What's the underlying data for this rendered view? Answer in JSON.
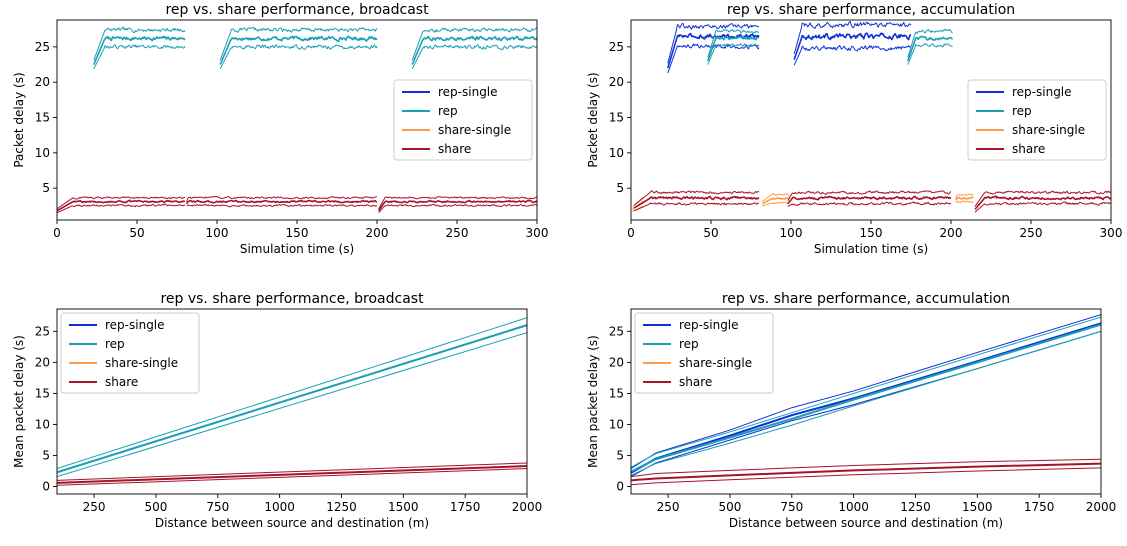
{
  "colors": {
    "rep_single": "#1030d8",
    "rep": "#1a9fb5",
    "share_single": "#ff9a4a",
    "share": "#a51428"
  },
  "chart_data": [
    {
      "id": "tl",
      "type": "line",
      "title": "rep vs. share performance, broadcast",
      "xlabel": "Simulation time (s)",
      "ylabel": "Packet delay (s)",
      "xlim": [
        0,
        300
      ],
      "ylim": [
        0.5,
        28.8
      ],
      "xticks": [
        0,
        50,
        100,
        150,
        200,
        250,
        300
      ],
      "yticks": [
        5,
        10,
        15,
        20,
        25
      ],
      "legend_loc": "center-right",
      "legend": [
        "rep-single",
        "rep",
        "share-single",
        "share"
      ],
      "series": [
        {
          "name": "rep",
          "style": "rep",
          "band": true,
          "segments": [
            {
              "x0": 23,
              "x1": 80,
              "start": 22.5,
              "mean": 26.2,
              "spread": 1.2,
              "rise": 7
            },
            {
              "x0": 102,
              "x1": 200,
              "start": 22.5,
              "mean": 26.2,
              "spread": 1.2,
              "rise": 7
            },
            {
              "x0": 222,
              "x1": 300,
              "start": 22.5,
              "mean": 26.2,
              "spread": 1.2,
              "rise": 7
            }
          ]
        },
        {
          "name": "share",
          "style": "share",
          "band": true,
          "segments": [
            {
              "x0": 0,
              "x1": 80,
              "start": 1.8,
              "mean": 3.1,
              "spread": 0.55,
              "rise": 10
            },
            {
              "x0": 81,
              "x1": 200,
              "start": 2.8,
              "mean": 3.1,
              "spread": 0.55,
              "rise": 1
            },
            {
              "x0": 201,
              "x1": 300,
              "start": 1.8,
              "mean": 3.1,
              "spread": 0.55,
              "rise": 4
            }
          ]
        }
      ]
    },
    {
      "id": "tr",
      "type": "line",
      "title": "rep vs. share performance, accumulation",
      "xlabel": "Simulation time (s)",
      "ylabel": "Packet delay (s)",
      "xlim": [
        0,
        300
      ],
      "ylim": [
        0.5,
        28.8
      ],
      "xticks": [
        0,
        50,
        100,
        150,
        200,
        250,
        300
      ],
      "yticks": [
        5,
        10,
        15,
        20,
        25
      ],
      "legend_loc": "center-right",
      "legend": [
        "rep-single",
        "rep",
        "share-single",
        "share"
      ],
      "series": [
        {
          "name": "rep-single",
          "style": "rep_single",
          "band": true,
          "segments": [
            {
              "x0": 23,
              "x1": 80,
              "start": 22.0,
              "mean": 26.5,
              "spread": 1.4,
              "rise": 6
            },
            {
              "x0": 102,
              "x1": 175,
              "start": 23.2,
              "mean": 26.5,
              "spread": 1.6,
              "rise": 5
            }
          ]
        },
        {
          "name": "rep",
          "style": "rep",
          "band": true,
          "segments": [
            {
              "x0": 48,
              "x1": 80,
              "start": 23.0,
              "mean": 26.2,
              "spread": 1.0,
              "rise": 5
            },
            {
              "x0": 173,
              "x1": 201,
              "start": 23.0,
              "mean": 26.2,
              "spread": 1.0,
              "rise": 5
            }
          ]
        },
        {
          "name": "share-single",
          "style": "share_single",
          "band": true,
          "segments": [
            {
              "x0": 1,
              "x1": 8,
              "start": 2.0,
              "mean": 3.0,
              "spread": 0.6,
              "rise": 6
            },
            {
              "x0": 82,
              "x1": 99,
              "start": 2.8,
              "mean": 3.5,
              "spread": 0.6,
              "rise": 6
            },
            {
              "x0": 203,
              "x1": 214,
              "start": 3.3,
              "mean": 3.6,
              "spread": 0.5,
              "rise": 1
            }
          ]
        },
        {
          "name": "share",
          "style": "share",
          "band": true,
          "segments": [
            {
              "x0": 2,
              "x1": 80,
              "start": 2.2,
              "mean": 3.6,
              "spread": 0.8,
              "rise": 10
            },
            {
              "x0": 98,
              "x1": 200,
              "start": 2.8,
              "mean": 3.6,
              "spread": 0.8,
              "rise": 3
            },
            {
              "x0": 215,
              "x1": 300,
              "start": 2.0,
              "mean": 3.6,
              "spread": 0.8,
              "rise": 6
            }
          ]
        }
      ]
    },
    {
      "id": "bl",
      "type": "line",
      "title": "rep vs. share performance, broadcast",
      "xlabel": "Distance between source and destination (m)",
      "ylabel": "Mean packet delay (s)",
      "xlim": [
        100,
        2000
      ],
      "ylim": [
        -1.2,
        28.6
      ],
      "xticks": [
        250,
        500,
        750,
        1000,
        1250,
        1500,
        1750,
        2000
      ],
      "yticks": [
        0,
        5,
        10,
        15,
        20,
        25
      ],
      "legend_loc": "upper-left",
      "legend": [
        "rep-single",
        "rep",
        "share-single",
        "share"
      ],
      "series": [
        {
          "name": "rep",
          "style": "rep",
          "lines": [
            {
              "x": [
                100,
                2000
              ],
              "y": [
                2.3,
                26.0
              ],
              "w": 2.0
            },
            {
              "x": [
                100,
                2000
              ],
              "y": [
                2.9,
                27.2
              ],
              "w": 1.0
            },
            {
              "x": [
                100,
                2000
              ],
              "y": [
                1.6,
                24.8
              ],
              "w": 1.0
            }
          ]
        },
        {
          "name": "share",
          "style": "share",
          "lines": [
            {
              "x": [
                100,
                2000
              ],
              "y": [
                0.6,
                3.3
              ],
              "w": 2.0
            },
            {
              "x": [
                100,
                2000
              ],
              "y": [
                1.0,
                3.8
              ],
              "w": 1.0
            },
            {
              "x": [
                100,
                2000
              ],
              "y": [
                0.2,
                2.9
              ],
              "w": 1.0
            }
          ]
        }
      ]
    },
    {
      "id": "br",
      "type": "line",
      "title": "rep vs. share performance, accumulation",
      "xlabel": "Distance between source and destination (m)",
      "ylabel": "Mean packet delay (s)",
      "xlim": [
        100,
        2000
      ],
      "ylim": [
        -1.2,
        28.6
      ],
      "xticks": [
        250,
        500,
        750,
        1000,
        1250,
        1500,
        1750,
        2000
      ],
      "yticks": [
        0,
        5,
        10,
        15,
        20,
        25
      ],
      "legend_loc": "upper-left",
      "legend": [
        "rep-single",
        "rep",
        "share-single",
        "share"
      ],
      "series": [
        {
          "name": "rep-single",
          "style": "rep_single",
          "lines": [
            {
              "x": [
                100,
                200,
                500,
                750,
                1000,
                1500,
                2000
              ],
              "y": [
                2.2,
                4.5,
                8.2,
                11.5,
                14.2,
                20.2,
                26.3
              ],
              "w": 2.0
            },
            {
              "x": [
                100,
                200,
                500,
                750,
                1000,
                1500,
                2000
              ],
              "y": [
                2.9,
                5.4,
                9.1,
                12.7,
                15.4,
                21.6,
                27.7
              ],
              "w": 1.0
            },
            {
              "x": [
                100,
                200,
                500,
                750,
                1000,
                1500,
                2000
              ],
              "y": [
                1.6,
                3.8,
                7.5,
                10.6,
                13.2,
                19.0,
                25.0
              ],
              "w": 1.0
            }
          ]
        },
        {
          "name": "rep",
          "style": "rep",
          "lines": [
            {
              "x": [
                100,
                200,
                500,
                750,
                1000,
                1500,
                2000
              ],
              "y": [
                2.4,
                4.4,
                7.9,
                10.9,
                14.0,
                20.0,
                26.1
              ],
              "w": 2.0
            },
            {
              "x": [
                100,
                200,
                500,
                750,
                1000,
                1500,
                2000
              ],
              "y": [
                3.1,
                5.3,
                8.8,
                11.9,
                15.0,
                21.2,
                27.3
              ],
              "w": 1.0
            },
            {
              "x": [
                100,
                200,
                500,
                750,
                1000,
                1500,
                2000
              ],
              "y": [
                1.8,
                3.7,
                7.0,
                9.9,
                13.0,
                19.0,
                25.0
              ],
              "w": 1.0
            }
          ]
        },
        {
          "name": "share",
          "style": "share",
          "lines": [
            {
              "x": [
                100,
                200,
                500,
                750,
                1000,
                1500,
                2000
              ],
              "y": [
                1.0,
                1.3,
                1.8,
                2.2,
                2.6,
                3.2,
                3.7
              ],
              "w": 2.0
            },
            {
              "x": [
                100,
                200,
                500,
                750,
                1000,
                1500,
                2000
              ],
              "y": [
                1.6,
                2.1,
                2.6,
                3.0,
                3.4,
                4.0,
                4.4
              ],
              "w": 1.0
            },
            {
              "x": [
                100,
                200,
                500,
                750,
                1000,
                1500,
                2000
              ],
              "y": [
                0.3,
                0.6,
                1.1,
                1.5,
                1.9,
                2.5,
                3.0
              ],
              "w": 1.0
            }
          ]
        }
      ]
    }
  ]
}
